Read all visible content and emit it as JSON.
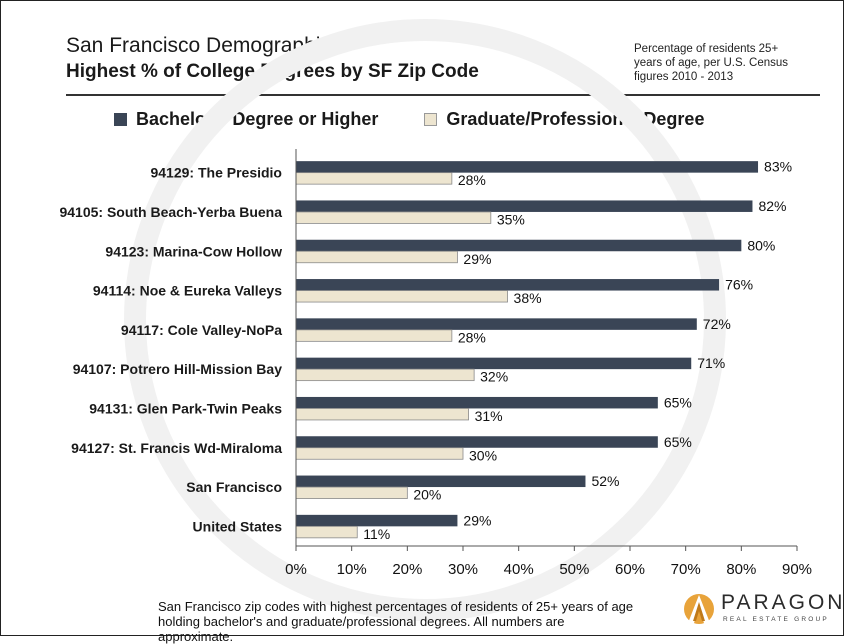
{
  "header": {
    "title": "San Francisco Demographics",
    "subtitle": "Highest % of College Degrees by SF Zip Code",
    "note": "Percentage of residents 25+ years of age, per U.S. Census figures 2010 - 2013"
  },
  "footer": {
    "caption": "San Francisco zip codes with highest percentages of residents of 25+ years of age holding bachelor's and graduate/professional degrees. All numbers are approximate."
  },
  "logo": {
    "name": "PARAGON",
    "tagline": "REAL ESTATE GROUP"
  },
  "colors": {
    "bachelor": "#3a4556",
    "graduate": "#ede5d0",
    "accent_orange": "#e8a33a"
  },
  "chart_data": {
    "type": "bar",
    "orientation": "horizontal",
    "title": "Highest % of College Degrees by SF Zip Code",
    "legend_position": "top",
    "categories": [
      "94129: The Presidio",
      "94105: South Beach-Yerba Buena",
      "94123: Marina-Cow Hollow",
      "94114: Noe & Eureka Valleys",
      "94117: Cole Valley-NoPa",
      "94107: Potrero Hill-Mission Bay",
      "94131: Glen Park-Twin Peaks",
      "94127: St. Francis Wd-Miraloma",
      "San Francisco",
      "United States"
    ],
    "series": [
      {
        "name": "Bachelor's Degree or Higher",
        "values": [
          83,
          82,
          80,
          76,
          72,
          71,
          65,
          65,
          52,
          29
        ]
      },
      {
        "name": "Graduate/Professional Degree",
        "values": [
          28,
          35,
          29,
          38,
          28,
          32,
          31,
          30,
          20,
          11
        ]
      }
    ],
    "xlim": [
      0,
      90
    ],
    "xticks": [
      "0%",
      "10%",
      "20%",
      "30%",
      "40%",
      "50%",
      "60%",
      "70%",
      "80%",
      "90%"
    ],
    "value_suffix": "%",
    "grid": false
  }
}
